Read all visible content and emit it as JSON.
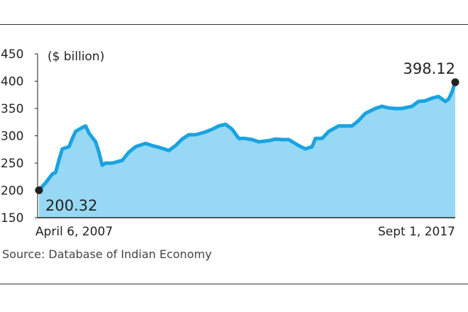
{
  "chart_data": {
    "type": "area",
    "title": "",
    "unit_label": "($ billion)",
    "ylim": [
      150,
      450
    ],
    "yticks": [
      "450",
      "400",
      "350",
      "300",
      "250",
      "200",
      "150"
    ],
    "x_labels": {
      "start": "April 6, 2007",
      "end": "Sept 1, 2017"
    },
    "annotations": {
      "start_value": "200.32",
      "end_value": "398.12"
    },
    "source": "Source: Database of Indian Economy",
    "grid": false,
    "colors": {
      "line": "#1aa3e0",
      "fill": "#97d8f5",
      "marker": "#222222"
    },
    "points": [
      [
        "2007-04",
        200.32
      ],
      [
        "2007-06",
        214
      ],
      [
        "2007-08",
        230
      ],
      [
        "2007-09",
        233
      ],
      [
        "2007-10",
        256
      ],
      [
        "2007-11",
        276
      ],
      [
        "2008-01",
        280
      ],
      [
        "2008-02",
        295
      ],
      [
        "2008-03",
        308
      ],
      [
        "2008-05",
        315
      ],
      [
        "2008-06",
        318
      ],
      [
        "2008-07",
        305
      ],
      [
        "2008-09",
        289
      ],
      [
        "2008-10",
        270
      ],
      [
        "2008-11",
        246
      ],
      [
        "2008-12",
        250
      ],
      [
        "2009-02",
        250
      ],
      [
        "2009-05",
        255
      ],
      [
        "2009-07",
        270
      ],
      [
        "2009-09",
        280
      ],
      [
        "2009-12",
        286
      ],
      [
        "2010-02",
        282
      ],
      [
        "2010-04",
        279
      ],
      [
        "2010-07",
        273
      ],
      [
        "2010-09",
        282
      ],
      [
        "2010-11",
        294
      ],
      [
        "2011-01",
        302
      ],
      [
        "2011-03",
        302
      ],
      [
        "2011-06",
        307
      ],
      [
        "2011-08",
        312
      ],
      [
        "2011-10",
        318
      ],
      [
        "2011-12",
        321
      ],
      [
        "2012-02",
        312
      ],
      [
        "2012-04",
        295
      ],
      [
        "2012-06",
        295
      ],
      [
        "2012-08",
        293
      ],
      [
        "2012-10",
        289
      ],
      [
        "2013-01",
        291
      ],
      [
        "2013-03",
        294
      ],
      [
        "2013-05",
        293
      ],
      [
        "2013-07",
        293
      ],
      [
        "2013-10",
        282
      ],
      [
        "2013-12",
        276
      ],
      [
        "2014-02",
        280
      ],
      [
        "2014-03",
        295
      ],
      [
        "2014-05",
        295
      ],
      [
        "2014-07",
        308
      ],
      [
        "2014-10",
        318
      ],
      [
        "2014-12",
        318
      ],
      [
        "2015-02",
        318
      ],
      [
        "2015-04",
        328
      ],
      [
        "2015-06",
        341
      ],
      [
        "2015-09",
        350
      ],
      [
        "2015-11",
        354
      ],
      [
        "2016-01",
        351
      ],
      [
        "2016-03",
        350
      ],
      [
        "2016-05",
        350
      ],
      [
        "2016-08",
        354
      ],
      [
        "2016-10",
        363
      ],
      [
        "2016-12",
        364
      ],
      [
        "2017-02",
        369
      ],
      [
        "2017-04",
        372
      ],
      [
        "2017-06",
        363
      ],
      [
        "2017-07",
        367
      ],
      [
        "2017-08",
        380
      ],
      [
        "2017-09",
        398.12
      ]
    ]
  }
}
